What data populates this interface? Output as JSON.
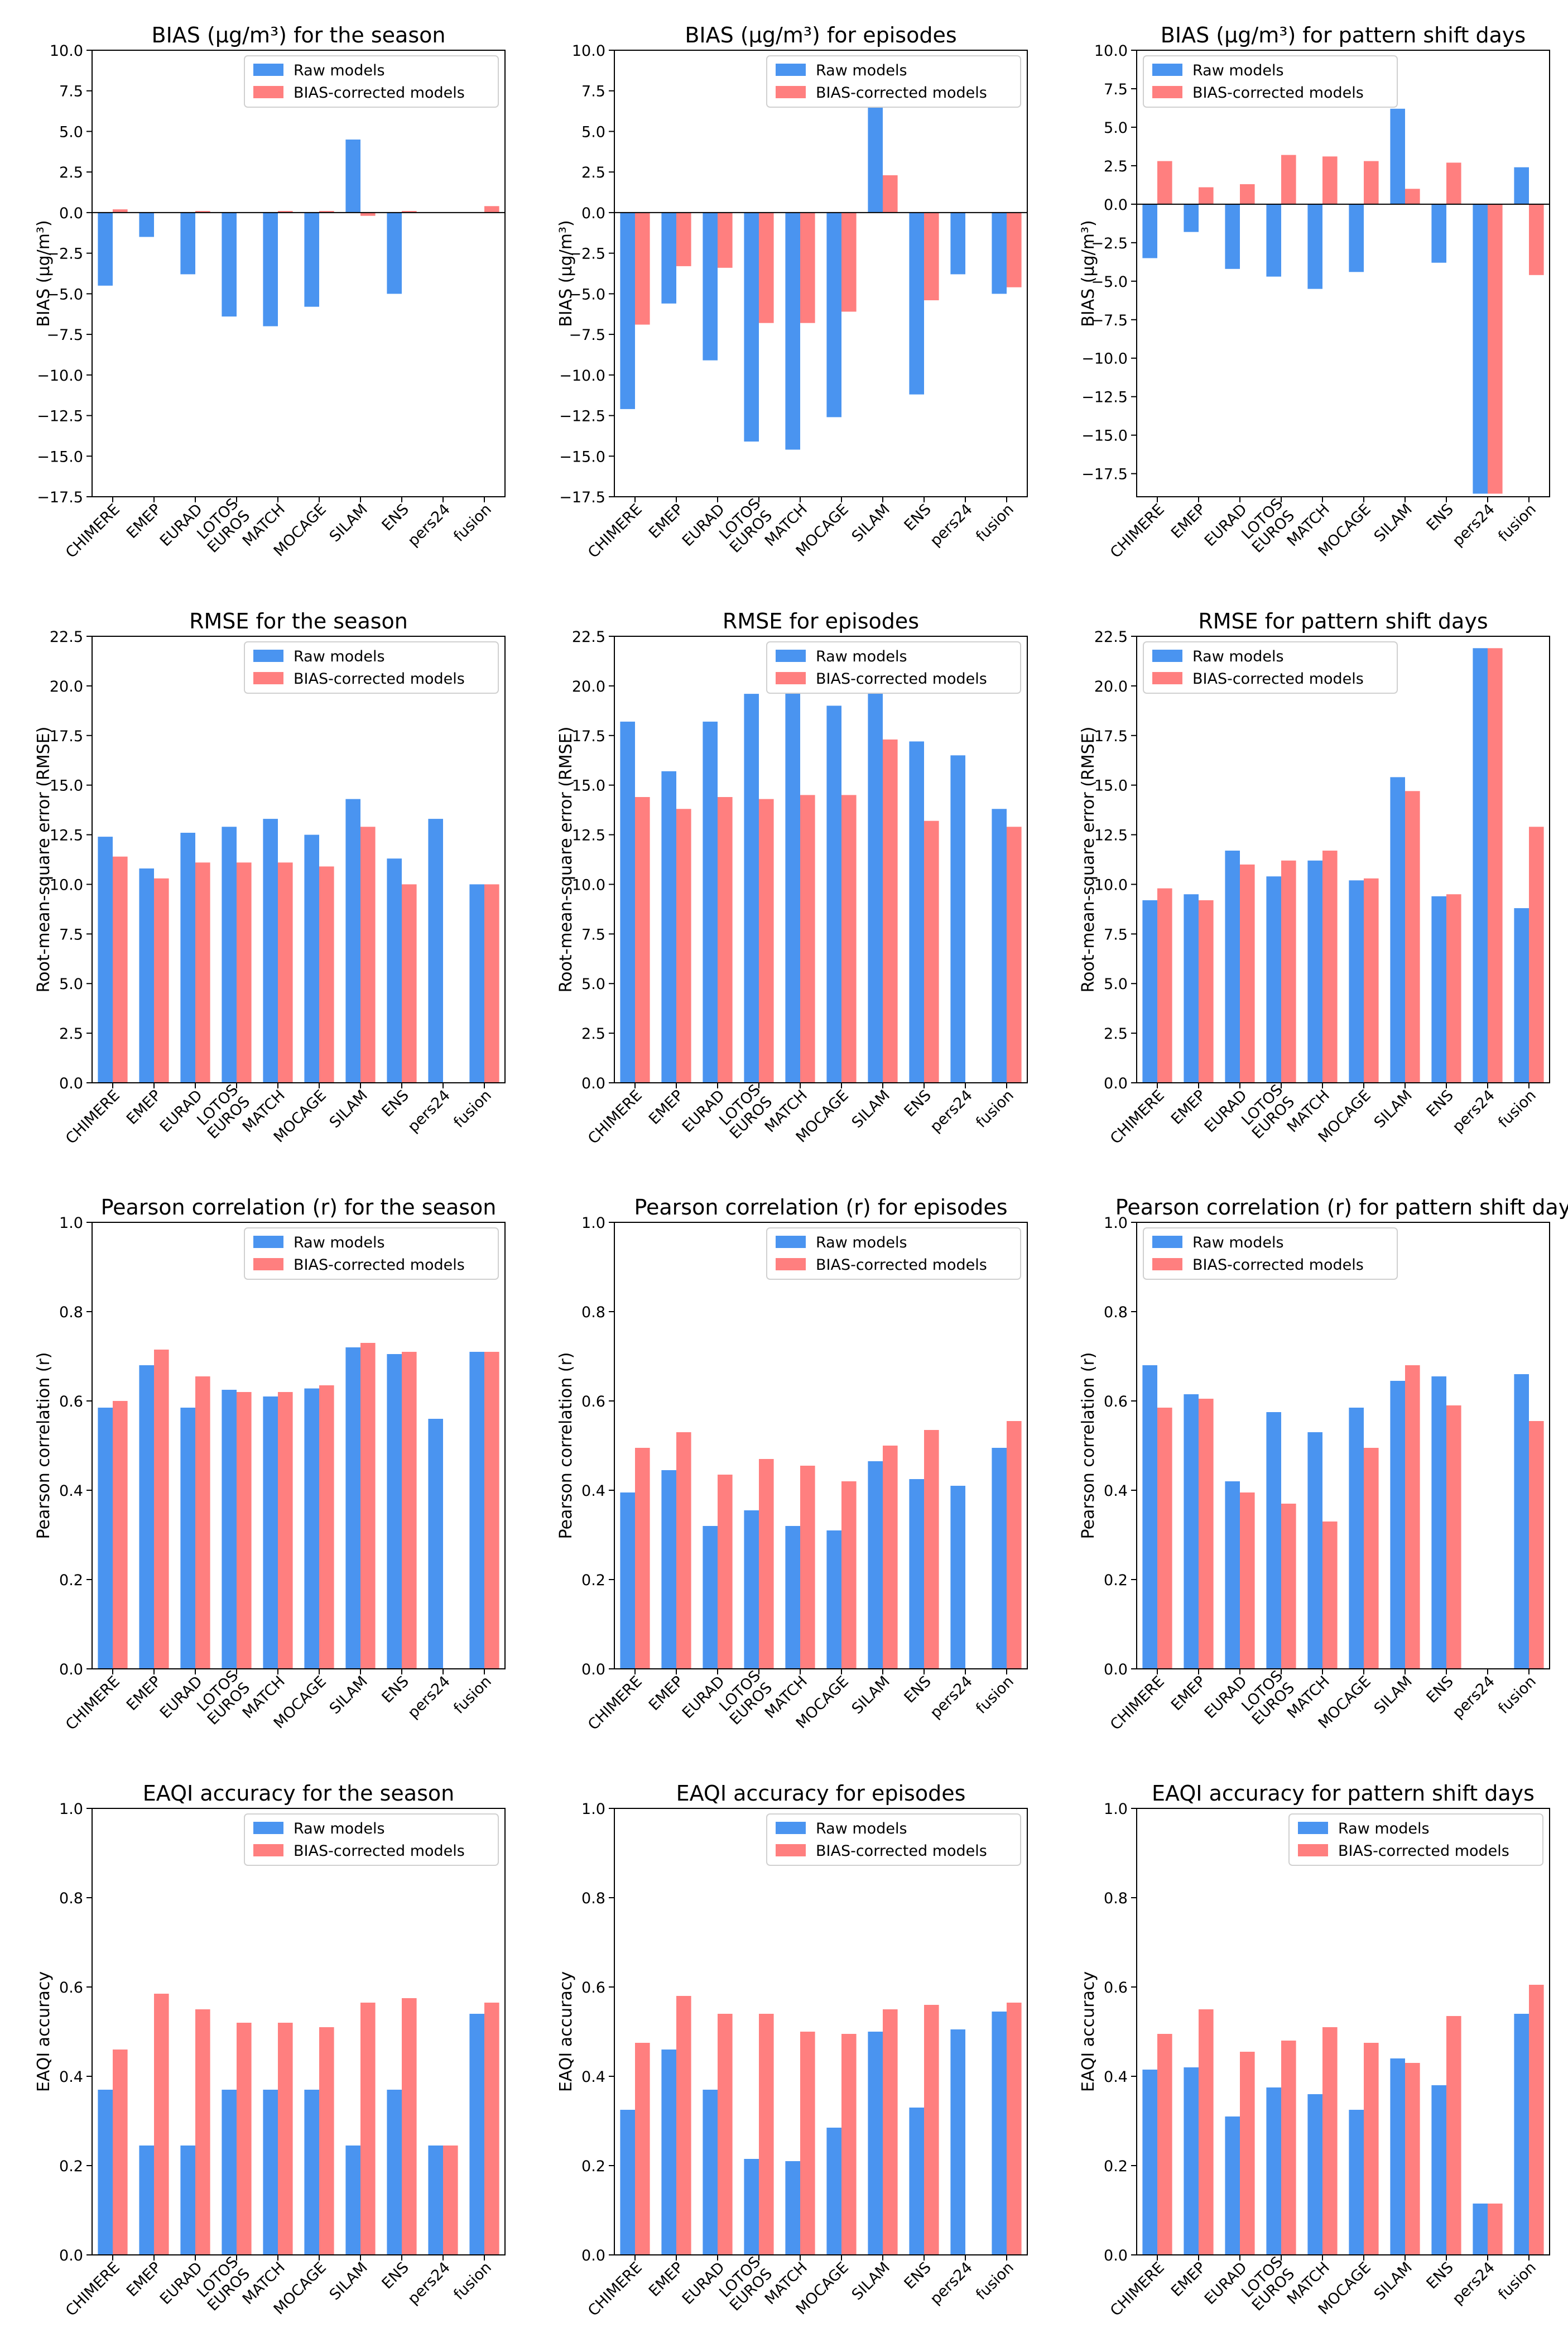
{
  "colors": {
    "raw": "#4a94f0",
    "corrected": "#ff7f7f"
  },
  "legend": {
    "raw": "Raw models",
    "corrected": "BIAS-corrected models"
  },
  "categories": [
    "CHIMERE",
    "EMEP",
    "EURAD",
    "LOTOS EUROS",
    "MATCH",
    "MOCAGE",
    "SILAM",
    "ENS",
    "pers24",
    "fusion"
  ],
  "chart_data": [
    {
      "type": "bar",
      "title": "BIAS (µg/m³) for the season",
      "ylabel": "BIAS (µg/m³)",
      "ylim": [
        -17.5,
        10
      ],
      "yticks": [
        10,
        7.5,
        5,
        2.5,
        0,
        -2.5,
        -5,
        -7.5,
        -10,
        -12.5,
        -15,
        -17.5
      ],
      "ytick_labels": [
        "10.0",
        "7.5",
        "5.0",
        "2.5",
        "0.0",
        "−2.5",
        "−5.0",
        "−7.5",
        "−10.0",
        "−12.5",
        "−15.0",
        "−17.5"
      ],
      "zero_line": true,
      "legend_loc": "upper-right",
      "series": [
        {
          "name": "Raw models",
          "values": [
            -4.5,
            -1.5,
            -3.8,
            -6.4,
            -7.0,
            -5.8,
            4.5,
            -5.0,
            null,
            null
          ]
        },
        {
          "name": "BIAS-corrected models",
          "values": [
            0.2,
            0.0,
            0.1,
            0.0,
            0.1,
            0.1,
            -0.2,
            0.1,
            null,
            0.4
          ]
        }
      ]
    },
    {
      "type": "bar",
      "title": "BIAS (µg/m³) for episodes",
      "ylabel": "BIAS (µg/m³)",
      "ylim": [
        -17.5,
        10
      ],
      "yticks": [
        10,
        7.5,
        5,
        2.5,
        0,
        -2.5,
        -5,
        -7.5,
        -10,
        -12.5,
        -15,
        -17.5
      ],
      "ytick_labels": [
        "10.0",
        "7.5",
        "5.0",
        "2.5",
        "0.0",
        "−2.5",
        "−5.0",
        "−7.5",
        "−10.0",
        "−12.5",
        "−15.0",
        "−17.5"
      ],
      "zero_line": true,
      "legend_loc": "upper-right",
      "series": [
        {
          "name": "Raw models",
          "values": [
            -12.1,
            -5.6,
            -9.1,
            -14.1,
            -14.6,
            -12.6,
            7.7,
            -11.2,
            -3.8,
            -5.0
          ]
        },
        {
          "name": "BIAS-corrected models",
          "values": [
            -6.9,
            -3.3,
            -3.4,
            -6.8,
            -6.8,
            -6.1,
            2.3,
            -5.4,
            null,
            -4.6
          ]
        }
      ]
    },
    {
      "type": "bar",
      "title": "BIAS (µg/m³) for pattern shift days",
      "ylabel": "BIAS (µg/m³)",
      "ylim": [
        -19,
        10
      ],
      "yticks": [
        10,
        7.5,
        5,
        2.5,
        0,
        -2.5,
        -5,
        -7.5,
        -10,
        -12.5,
        -15,
        -17.5
      ],
      "ytick_labels": [
        "10.0",
        "7.5",
        "5.0",
        "2.5",
        "0.0",
        "−2.5",
        "−5.0",
        "−7.5",
        "−10.0",
        "−12.5",
        "−15.0",
        "−17.5"
      ],
      "zero_line": true,
      "legend_loc": "upper-left",
      "series": [
        {
          "name": "Raw models",
          "values": [
            -3.5,
            -1.8,
            -4.2,
            -4.7,
            -5.5,
            -4.4,
            6.2,
            -3.8,
            -18.8,
            2.4
          ]
        },
        {
          "name": "BIAS-corrected models",
          "values": [
            2.8,
            1.1,
            1.3,
            3.2,
            3.1,
            2.8,
            1.0,
            2.7,
            -18.8,
            -4.6
          ]
        }
      ]
    },
    {
      "type": "bar",
      "title": "RMSE for the season",
      "ylabel": "Root-mean-square error (RMSE)",
      "ylim": [
        0,
        22.5
      ],
      "yticks": [
        0,
        2.5,
        5,
        7.5,
        10,
        12.5,
        15,
        17.5,
        20,
        22.5
      ],
      "ytick_labels": [
        "0.0",
        "2.5",
        "5.0",
        "7.5",
        "10.0",
        "12.5",
        "15.0",
        "17.5",
        "20.0",
        "22.5"
      ],
      "zero_line": false,
      "legend_loc": "upper-right",
      "series": [
        {
          "name": "Raw models",
          "values": [
            12.4,
            10.8,
            12.6,
            12.9,
            13.3,
            12.5,
            14.3,
            11.3,
            13.3,
            10.0
          ]
        },
        {
          "name": "BIAS-corrected models",
          "values": [
            11.4,
            10.3,
            11.1,
            11.1,
            11.1,
            10.9,
            12.9,
            10.0,
            null,
            10.0
          ]
        }
      ]
    },
    {
      "type": "bar",
      "title": "RMSE for episodes",
      "ylabel": "Root-mean-square error (RMSE)",
      "ylim": [
        0,
        22.5
      ],
      "yticks": [
        0,
        2.5,
        5,
        7.5,
        10,
        12.5,
        15,
        17.5,
        20,
        22.5
      ],
      "ytick_labels": [
        "0.0",
        "2.5",
        "5.0",
        "7.5",
        "10.0",
        "12.5",
        "15.0",
        "17.5",
        "20.0",
        "22.5"
      ],
      "zero_line": false,
      "legend_loc": "upper-right",
      "series": [
        {
          "name": "Raw models",
          "values": [
            18.2,
            15.7,
            18.2,
            19.6,
            20.1,
            19.0,
            20.0,
            17.2,
            16.5,
            13.8
          ]
        },
        {
          "name": "BIAS-corrected models",
          "values": [
            14.4,
            13.8,
            14.4,
            14.3,
            14.5,
            14.5,
            17.3,
            13.2,
            null,
            12.9
          ]
        }
      ]
    },
    {
      "type": "bar",
      "title": "RMSE for pattern shift days",
      "ylabel": "Root-mean-square error (RMSE)",
      "ylim": [
        0,
        22.5
      ],
      "yticks": [
        0,
        2.5,
        5,
        7.5,
        10,
        12.5,
        15,
        17.5,
        20,
        22.5
      ],
      "ytick_labels": [
        "0.0",
        "2.5",
        "5.0",
        "7.5",
        "10.0",
        "12.5",
        "15.0",
        "17.5",
        "20.0",
        "22.5"
      ],
      "zero_line": false,
      "legend_loc": "upper-left",
      "series": [
        {
          "name": "Raw models",
          "values": [
            9.2,
            9.5,
            11.7,
            10.4,
            11.2,
            10.2,
            15.4,
            9.4,
            21.9,
            8.8
          ]
        },
        {
          "name": "BIAS-corrected models",
          "values": [
            9.8,
            9.2,
            11.0,
            11.2,
            11.7,
            10.3,
            14.7,
            9.5,
            21.9,
            12.9
          ]
        }
      ]
    },
    {
      "type": "bar",
      "title": "Pearson correlation (r) for the season",
      "ylabel": "Pearson correlation (r)",
      "ylim": [
        0,
        1
      ],
      "yticks": [
        0,
        0.2,
        0.4,
        0.6,
        0.8,
        1.0
      ],
      "ytick_labels": [
        "0.0",
        "0.2",
        "0.4",
        "0.6",
        "0.8",
        "1.0"
      ],
      "zero_line": false,
      "legend_loc": "upper-right",
      "series": [
        {
          "name": "Raw models",
          "values": [
            0.585,
            0.68,
            0.585,
            0.625,
            0.61,
            0.628,
            0.72,
            0.705,
            0.56,
            0.71
          ]
        },
        {
          "name": "BIAS-corrected models",
          "values": [
            0.6,
            0.715,
            0.655,
            0.62,
            0.62,
            0.635,
            0.73,
            0.71,
            null,
            0.71
          ]
        }
      ]
    },
    {
      "type": "bar",
      "title": "Pearson correlation (r) for episodes",
      "ylabel": "Pearson correlation (r)",
      "ylim": [
        0,
        1
      ],
      "yticks": [
        0,
        0.2,
        0.4,
        0.6,
        0.8,
        1.0
      ],
      "ytick_labels": [
        "0.0",
        "0.2",
        "0.4",
        "0.6",
        "0.8",
        "1.0"
      ],
      "zero_line": false,
      "legend_loc": "upper-right",
      "series": [
        {
          "name": "Raw models",
          "values": [
            0.395,
            0.445,
            0.32,
            0.355,
            0.32,
            0.31,
            0.465,
            0.425,
            0.41,
            0.495
          ]
        },
        {
          "name": "BIAS-corrected models",
          "values": [
            0.495,
            0.53,
            0.435,
            0.47,
            0.455,
            0.42,
            0.5,
            0.535,
            null,
            0.555
          ]
        }
      ]
    },
    {
      "type": "bar",
      "title": "Pearson correlation (r) for pattern shift day",
      "ylabel": "Pearson correlation (r)",
      "ylim": [
        0,
        1
      ],
      "yticks": [
        0,
        0.2,
        0.4,
        0.6,
        0.8,
        1.0
      ],
      "ytick_labels": [
        "0.0",
        "0.2",
        "0.4",
        "0.6",
        "0.8",
        "1.0"
      ],
      "zero_line": false,
      "legend_loc": "upper-left",
      "series": [
        {
          "name": "Raw models",
          "values": [
            0.68,
            0.615,
            0.42,
            0.575,
            0.53,
            0.585,
            0.645,
            0.655,
            null,
            0.66
          ]
        },
        {
          "name": "BIAS-corrected models",
          "values": [
            0.585,
            0.605,
            0.395,
            0.37,
            0.33,
            0.495,
            0.68,
            0.59,
            null,
            0.555
          ]
        }
      ]
    },
    {
      "type": "bar",
      "title": "EAQI accuracy for the season",
      "ylabel": "EAQI accuracy",
      "ylim": [
        0,
        1
      ],
      "yticks": [
        0,
        0.2,
        0.4,
        0.6,
        0.8,
        1.0
      ],
      "ytick_labels": [
        "0.0",
        "0.2",
        "0.4",
        "0.6",
        "0.8",
        "1.0"
      ],
      "zero_line": false,
      "legend_loc": "upper-right",
      "series": [
        {
          "name": "Raw models",
          "values": [
            0.37,
            0.245,
            0.245,
            0.37,
            0.37,
            0.37,
            0.245,
            0.37,
            0.245,
            0.54
          ]
        },
        {
          "name": "BIAS-corrected models",
          "values": [
            0.46,
            0.585,
            0.55,
            0.52,
            0.52,
            0.51,
            0.565,
            0.575,
            0.245,
            0.565
          ]
        }
      ]
    },
    {
      "type": "bar",
      "title": "EAQI accuracy for episodes",
      "ylabel": "EAQI accuracy",
      "ylim": [
        0,
        1
      ],
      "yticks": [
        0,
        0.2,
        0.4,
        0.6,
        0.8,
        1.0
      ],
      "ytick_labels": [
        "0.0",
        "0.2",
        "0.4",
        "0.6",
        "0.8",
        "1.0"
      ],
      "zero_line": false,
      "legend_loc": "upper-right",
      "series": [
        {
          "name": "Raw models",
          "values": [
            0.325,
            0.46,
            0.37,
            0.215,
            0.21,
            0.285,
            0.5,
            0.33,
            0.505,
            0.545
          ]
        },
        {
          "name": "BIAS-corrected models",
          "values": [
            0.475,
            0.58,
            0.54,
            0.54,
            0.5,
            0.495,
            0.55,
            0.56,
            null,
            0.565
          ]
        }
      ]
    },
    {
      "type": "bar",
      "title": "EAQI accuracy for pattern shift days",
      "ylabel": "EAQI accuracy",
      "ylim": [
        0,
        1
      ],
      "yticks": [
        0,
        0.2,
        0.4,
        0.6,
        0.8,
        1.0
      ],
      "ytick_labels": [
        "0.0",
        "0.2",
        "0.4",
        "0.6",
        "0.8",
        "1.0"
      ],
      "zero_line": false,
      "legend_loc": "upper-right",
      "series": [
        {
          "name": "Raw models",
          "values": [
            0.415,
            0.42,
            0.31,
            0.375,
            0.36,
            0.325,
            0.44,
            0.38,
            0.115,
            0.54
          ]
        },
        {
          "name": "BIAS-corrected models",
          "values": [
            0.495,
            0.55,
            0.455,
            0.48,
            0.51,
            0.475,
            0.43,
            0.535,
            0.115,
            0.605
          ]
        }
      ]
    }
  ]
}
